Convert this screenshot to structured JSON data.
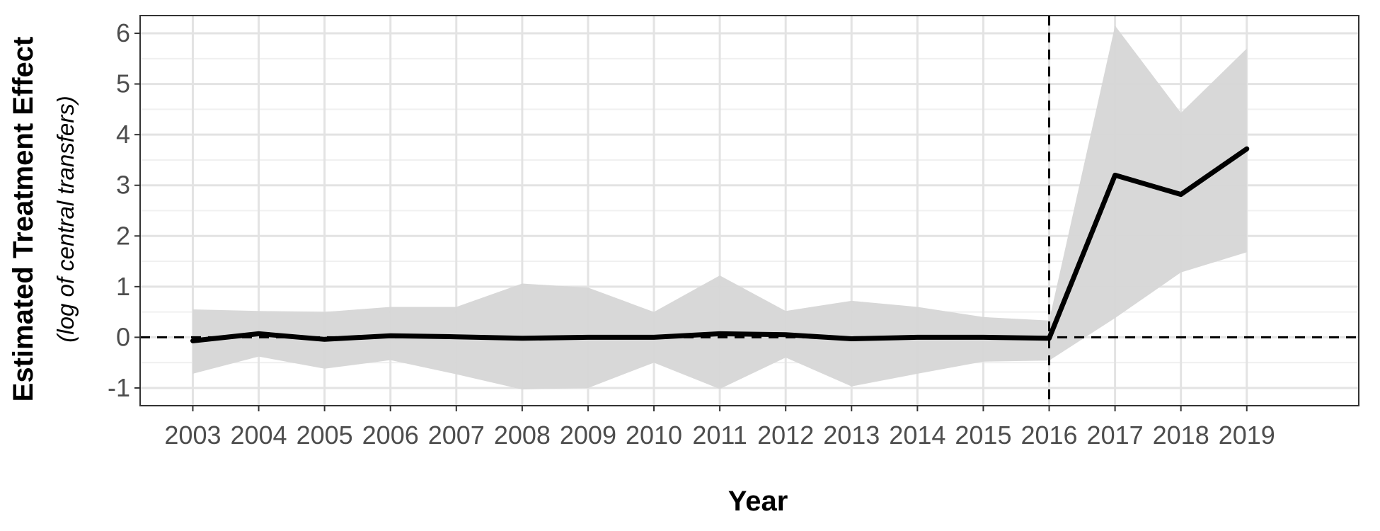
{
  "chart_data": {
    "type": "line",
    "xlabel": "Year",
    "ylabel": "Estimated Treatment Effect",
    "ylabel_sub": "(log of central transfers)",
    "x": [
      2003,
      2004,
      2005,
      2006,
      2007,
      2008,
      2009,
      2010,
      2011,
      2012,
      2013,
      2014,
      2015,
      2016,
      2017,
      2018,
      2019
    ],
    "x_tick_labels": [
      "2003",
      "2004",
      "2005",
      "2006",
      "2007",
      "2008",
      "2009",
      "2010",
      "2011",
      "2012",
      "2013",
      "2014",
      "2015",
      "2016",
      "2017",
      "2018",
      "2019"
    ],
    "y_ticks": [
      -1,
      0,
      1,
      2,
      3,
      4,
      5,
      6
    ],
    "y_tick_labels": [
      "-1",
      "0",
      "1",
      "2",
      "3",
      "4",
      "5",
      "6"
    ],
    "xlim": [
      2002.2,
      2020.7
    ],
    "ylim": [
      -1.35,
      6.35
    ],
    "series": [
      {
        "values": [
          -0.07,
          0.07,
          -0.04,
          0.03,
          0.01,
          -0.02,
          0.0,
          0.0,
          0.07,
          0.05,
          -0.03,
          0.0,
          0.0,
          -0.02,
          3.2,
          2.82,
          3.72
        ],
        "lower": [
          -0.72,
          -0.38,
          -0.62,
          -0.45,
          -0.73,
          -1.03,
          -1.0,
          -0.5,
          -1.02,
          -0.4,
          -0.97,
          -0.72,
          -0.48,
          -0.46,
          0.38,
          1.28,
          1.68
        ],
        "upper": [
          0.55,
          0.52,
          0.5,
          0.6,
          0.6,
          1.06,
          0.98,
          0.5,
          1.22,
          0.52,
          0.72,
          0.6,
          0.4,
          0.33,
          6.15,
          4.43,
          5.7
        ],
        "color": "#000000",
        "band_color": "#d6d6d6"
      }
    ],
    "reference_lines": {
      "horizontal_y": 0,
      "vertical_x": 2016
    },
    "grid": true,
    "legend": "none"
  }
}
